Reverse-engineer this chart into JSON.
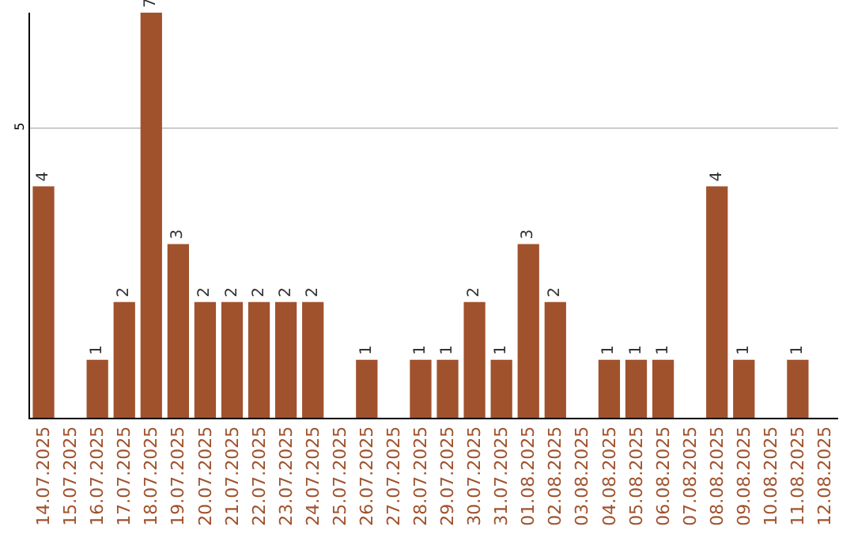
{
  "chart_data": {
    "type": "bar",
    "categories": [
      "14.07.2025",
      "15.07.2025",
      "16.07.2025",
      "17.07.2025",
      "18.07.2025",
      "19.07.2025",
      "20.07.2025",
      "21.07.2025",
      "22.07.2025",
      "23.07.2025",
      "24.07.2025",
      "25.07.2025",
      "26.07.2025",
      "27.07.2025",
      "28.07.2025",
      "29.07.2025",
      "30.07.2025",
      "31.07.2025",
      "01.08.2025",
      "02.08.2025",
      "03.08.2025",
      "04.08.2025",
      "05.08.2025",
      "06.08.2025",
      "07.08.2025",
      "08.08.2025",
      "09.08.2025",
      "10.08.2025",
      "11.08.2025",
      "12.08.2025"
    ],
    "values": [
      4,
      null,
      1,
      2,
      7,
      3,
      2,
      2,
      2,
      2,
      2,
      null,
      1,
      null,
      1,
      1,
      2,
      1,
      3,
      2,
      null,
      1,
      1,
      1,
      null,
      4,
      1,
      null,
      1,
      null
    ],
    "color": "#a0522d",
    "ylim": [
      0,
      7
    ],
    "yticks": [
      5
    ],
    "grid": "y",
    "data_labels": true,
    "legend": false
  }
}
